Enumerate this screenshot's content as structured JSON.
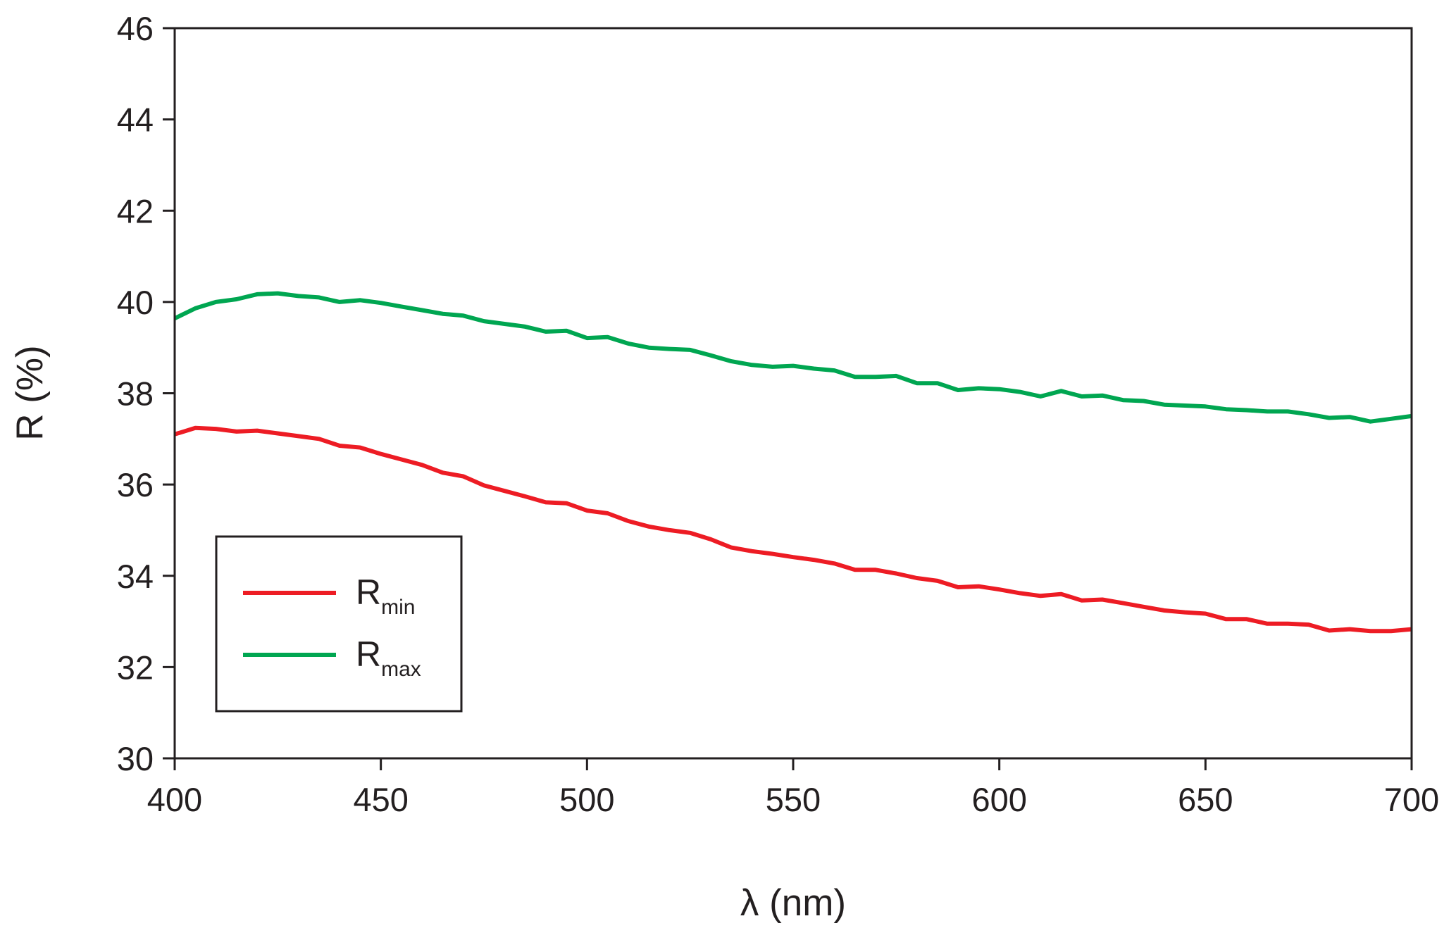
{
  "chart_data": {
    "type": "line",
    "title": "",
    "xlabel": "λ (nm)",
    "ylabel": "R (%)",
    "xlim": [
      400,
      700
    ],
    "ylim": [
      30,
      46
    ],
    "xticks": [
      400,
      450,
      500,
      550,
      600,
      650,
      700
    ],
    "yticks": [
      30,
      32,
      34,
      36,
      38,
      40,
      42,
      44,
      46
    ],
    "grid": false,
    "legend_position": "bottom-left",
    "x": [
      400,
      405,
      410,
      415,
      420,
      425,
      430,
      435,
      440,
      445,
      450,
      455,
      460,
      465,
      470,
      475,
      480,
      485,
      490,
      495,
      500,
      505,
      510,
      515,
      520,
      525,
      530,
      535,
      540,
      545,
      550,
      555,
      560,
      565,
      570,
      575,
      580,
      585,
      590,
      595,
      600,
      605,
      610,
      615,
      620,
      625,
      630,
      635,
      640,
      645,
      650,
      655,
      660,
      665,
      670,
      675,
      680,
      685,
      690,
      695,
      700
    ],
    "series": [
      {
        "name": "R",
        "subscript": "min",
        "color": "#ed1c24",
        "values": [
          37.1,
          37.24,
          37.22,
          37.16,
          37.18,
          37.12,
          37.06,
          37.0,
          36.85,
          36.81,
          36.67,
          36.55,
          36.43,
          36.26,
          36.18,
          35.98,
          35.86,
          35.74,
          35.61,
          35.59,
          35.43,
          35.37,
          35.2,
          35.08,
          35.0,
          34.94,
          34.8,
          34.62,
          34.54,
          34.48,
          34.41,
          34.35,
          34.27,
          34.13,
          34.13,
          34.05,
          33.95,
          33.89,
          33.75,
          33.77,
          33.7,
          33.62,
          33.56,
          33.6,
          33.46,
          33.48,
          33.4,
          33.32,
          33.24,
          33.2,
          33.17,
          33.05,
          33.05,
          32.95,
          32.95,
          32.93,
          32.8,
          32.83,
          32.79,
          32.79,
          32.83
        ]
      },
      {
        "name": "R",
        "subscript": "max",
        "color": "#00a651",
        "values": [
          39.64,
          39.86,
          40.0,
          40.06,
          40.17,
          40.19,
          40.13,
          40.1,
          40.0,
          40.04,
          39.98,
          39.9,
          39.82,
          39.74,
          39.7,
          39.58,
          39.52,
          39.46,
          39.35,
          39.37,
          39.21,
          39.23,
          39.09,
          39.0,
          38.97,
          38.95,
          38.83,
          38.7,
          38.62,
          38.58,
          38.6,
          38.54,
          38.5,
          38.36,
          38.36,
          38.38,
          38.22,
          38.22,
          38.07,
          38.11,
          38.09,
          38.03,
          37.93,
          38.05,
          37.93,
          37.95,
          37.85,
          37.83,
          37.75,
          37.73,
          37.71,
          37.65,
          37.63,
          37.6,
          37.6,
          37.54,
          37.46,
          37.48,
          37.38,
          37.44,
          37.5
        ]
      }
    ]
  }
}
